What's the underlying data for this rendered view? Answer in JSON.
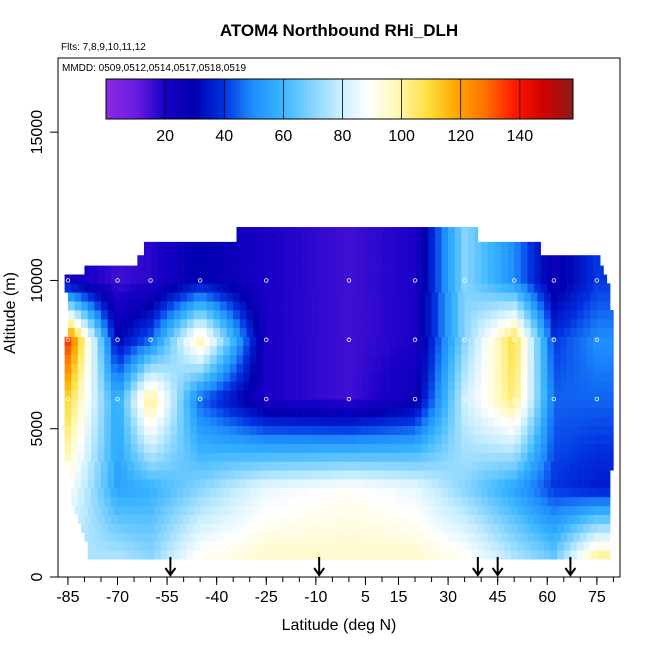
{
  "chart_data": {
    "type": "heatmap",
    "title": "ATOM4 Northbound RHi_DLH",
    "subtitle_flights": "Flts: 7,8,9,10,11,12",
    "subtitle_dates": "MMDD: 0509,0512,0514,0517,0518,0519",
    "xlabel": "Latitude (deg N)",
    "ylabel": "Altitude (m)",
    "xlim": [
      -88,
      82
    ],
    "ylim": [
      0,
      17500
    ],
    "x_ticks_major": [
      -85,
      -70,
      -55,
      -40,
      -25,
      -10,
      5,
      15,
      30,
      45,
      60,
      75
    ],
    "x_ticks_minor_step": 5,
    "y_ticks": [
      0,
      5000,
      10000,
      15000
    ],
    "colorbar": {
      "range": [
        0,
        158
      ],
      "tick_values": [
        20,
        40,
        60,
        80,
        100,
        120,
        140
      ],
      "colors": [
        "#8a2be2",
        "#6a1ee0",
        "#1a00c8",
        "#0000b0",
        "#0030e0",
        "#1e8cff",
        "#38b4ff",
        "#80d2ff",
        "#c8eeff",
        "#ffffff",
        "#fff7b0",
        "#ffe040",
        "#ffa800",
        "#ff7000",
        "#ff1a00",
        "#d00000",
        "#8c1a1a"
      ]
    },
    "arrow_latitudes": [
      -54,
      -9,
      39,
      45,
      67
    ],
    "altitude_bins_m": [
      750,
      1050,
      1350,
      1650,
      1950,
      2250,
      2550,
      2850,
      3150,
      3450,
      3750,
      4050,
      4350,
      4650,
      4950,
      5250,
      5550,
      5850,
      6150,
      6450,
      6750,
      7050,
      7350,
      7650,
      7950,
      8250,
      8550,
      8850,
      9150,
      9450,
      9750,
      10050,
      10350,
      10650,
      11050,
      11550,
      12050
    ],
    "latitude_extent_by_bin": [
      [
        -79,
        79
      ],
      [
        -79,
        79
      ],
      [
        -80,
        79
      ],
      [
        -81,
        79
      ],
      [
        -82,
        79
      ],
      [
        -83,
        79
      ],
      [
        -84,
        79
      ],
      [
        -84,
        79
      ],
      [
        -85,
        79
      ],
      [
        -85,
        79
      ],
      [
        -85,
        80
      ],
      [
        -86,
        80
      ],
      [
        -86,
        80
      ],
      [
        -86,
        80
      ],
      [
        -86,
        80
      ],
      [
        -86,
        80
      ],
      [
        -86,
        80
      ],
      [
        -86,
        80
      ],
      [
        -86,
        80
      ],
      [
        -86,
        80
      ],
      [
        -86,
        80
      ],
      [
        -86,
        80
      ],
      [
        -86,
        80
      ],
      [
        -86,
        80
      ],
      [
        -86,
        80
      ],
      [
        -85,
        80
      ],
      [
        -85,
        80
      ],
      [
        -85,
        80
      ],
      [
        -85,
        79
      ],
      [
        -85,
        79
      ],
      [
        -86,
        79
      ],
      [
        -86,
        78
      ],
      [
        -80,
        77
      ],
      [
        -64,
        76
      ],
      [
        -62,
        58
      ],
      [
        -34,
        39
      ],
      [
        38,
        38
      ]
    ],
    "rhi_profile_points": [
      {
        "lat": -85,
        "alt": 750,
        "rhi": 75
      },
      {
        "lat": -85,
        "alt": 3000,
        "rhi": 90
      },
      {
        "lat": -85,
        "alt": 6000,
        "rhi": 110
      },
      {
        "lat": -85,
        "alt": 8000,
        "rhi": 135
      },
      {
        "lat": -85,
        "alt": 10000,
        "rhi": 25
      },
      {
        "lat": -70,
        "alt": 750,
        "rhi": 75
      },
      {
        "lat": -70,
        "alt": 3000,
        "rhi": 55
      },
      {
        "lat": -70,
        "alt": 6000,
        "rhi": 55
      },
      {
        "lat": -70,
        "alt": 8000,
        "rhi": 30
      },
      {
        "lat": -70,
        "alt": 10000,
        "rhi": 15
      },
      {
        "lat": -60,
        "alt": 750,
        "rhi": 70
      },
      {
        "lat": -60,
        "alt": 3000,
        "rhi": 58
      },
      {
        "lat": -60,
        "alt": 6000,
        "rhi": 105
      },
      {
        "lat": -60,
        "alt": 8000,
        "rhi": 45
      },
      {
        "lat": -60,
        "alt": 10000,
        "rhi": 18
      },
      {
        "lat": -45,
        "alt": 750,
        "rhi": 90
      },
      {
        "lat": -45,
        "alt": 3000,
        "rhi": 70
      },
      {
        "lat": -45,
        "alt": 6000,
        "rhi": 45
      },
      {
        "lat": -45,
        "alt": 8000,
        "rhi": 100
      },
      {
        "lat": -45,
        "alt": 10000,
        "rhi": 30
      },
      {
        "lat": -25,
        "alt": 750,
        "rhi": 95
      },
      {
        "lat": -25,
        "alt": 3000,
        "rhi": 85
      },
      {
        "lat": -25,
        "alt": 6000,
        "rhi": 20
      },
      {
        "lat": -25,
        "alt": 8000,
        "rhi": 20
      },
      {
        "lat": -25,
        "alt": 10000,
        "rhi": 20
      },
      {
        "lat": 0,
        "alt": 750,
        "rhi": 95
      },
      {
        "lat": 0,
        "alt": 3000,
        "rhi": 90
      },
      {
        "lat": 0,
        "alt": 6000,
        "rhi": 15
      },
      {
        "lat": 0,
        "alt": 8000,
        "rhi": 15
      },
      {
        "lat": 0,
        "alt": 10000,
        "rhi": 15
      },
      {
        "lat": 20,
        "alt": 750,
        "rhi": 95
      },
      {
        "lat": 20,
        "alt": 3000,
        "rhi": 85
      },
      {
        "lat": 20,
        "alt": 6000,
        "rhi": 25
      },
      {
        "lat": 20,
        "alt": 8000,
        "rhi": 20
      },
      {
        "lat": 20,
        "alt": 10000,
        "rhi": 20
      },
      {
        "lat": 35,
        "alt": 750,
        "rhi": 90
      },
      {
        "lat": 35,
        "alt": 3000,
        "rhi": 70
      },
      {
        "lat": 35,
        "alt": 6000,
        "rhi": 80
      },
      {
        "lat": 35,
        "alt": 8000,
        "rhi": 70
      },
      {
        "lat": 35,
        "alt": 10000,
        "rhi": 70
      },
      {
        "lat": 50,
        "alt": 750,
        "rhi": 75
      },
      {
        "lat": 50,
        "alt": 3000,
        "rhi": 55
      },
      {
        "lat": 50,
        "alt": 6000,
        "rhi": 105
      },
      {
        "lat": 50,
        "alt": 8000,
        "rhi": 110
      },
      {
        "lat": 50,
        "alt": 10000,
        "rhi": 50
      },
      {
        "lat": 62,
        "alt": 750,
        "rhi": 65
      },
      {
        "lat": 62,
        "alt": 3000,
        "rhi": 40
      },
      {
        "lat": 62,
        "alt": 6000,
        "rhi": 45
      },
      {
        "lat": 62,
        "alt": 8000,
        "rhi": 40
      },
      {
        "lat": 62,
        "alt": 10000,
        "rhi": 25
      },
      {
        "lat": 75,
        "alt": 750,
        "rhi": 100
      },
      {
        "lat": 75,
        "alt": 3000,
        "rhi": 35
      },
      {
        "lat": 75,
        "alt": 6000,
        "rhi": 45
      },
      {
        "lat": 75,
        "alt": 8000,
        "rhi": 50
      },
      {
        "lat": 75,
        "alt": 10000,
        "rhi": 40
      }
    ]
  }
}
